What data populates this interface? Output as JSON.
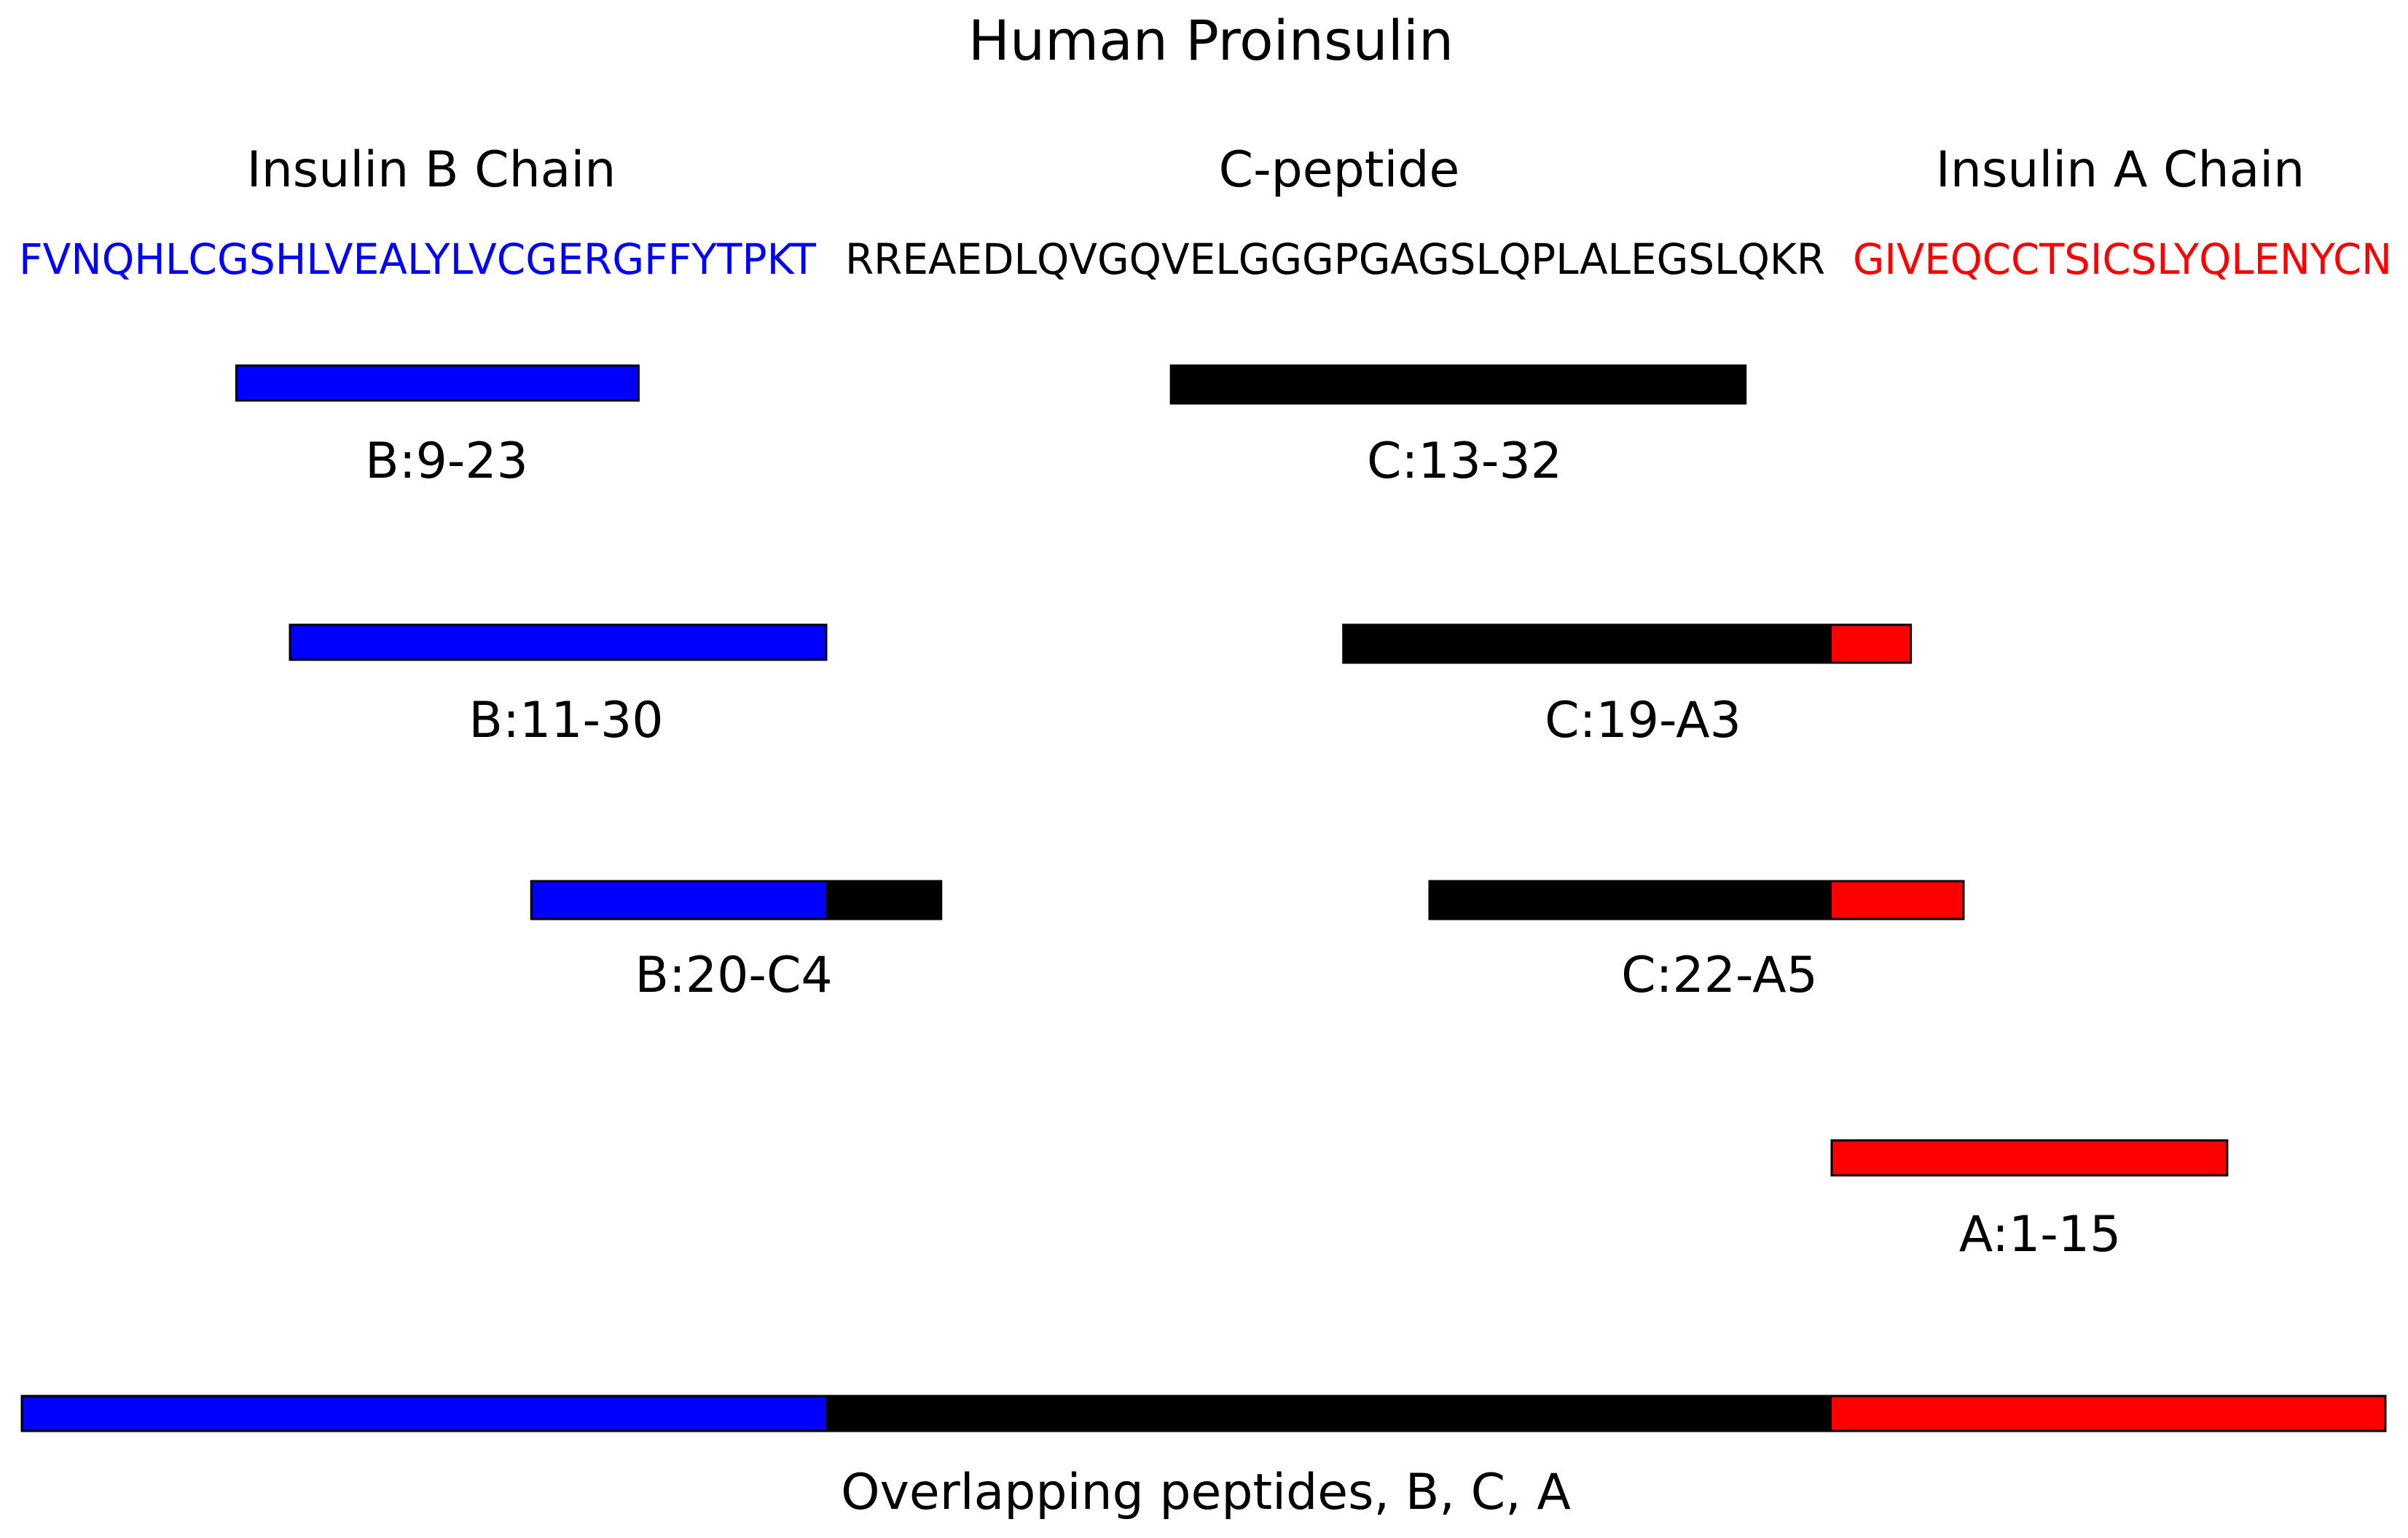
{
  "title": "Human Proinsulin",
  "colors": {
    "B": "#0000ff",
    "C": "#000000",
    "A": "#ff0000",
    "outline": "#000000"
  },
  "chains": [
    {
      "id": "B",
      "label": "Insulin B Chain",
      "sequence": "FVNQHLCGSHLVEALYLVCGERGFFYTPKT"
    },
    {
      "id": "C",
      "label": "C-peptide",
      "sequence": "RREAEDLQVGQVELGGGPGAGSLQPLALEGSLQKR"
    },
    {
      "id": "A",
      "label": "Insulin A Chain",
      "sequence": "GIVEQCCTSICSLYQLENYCN"
    }
  ],
  "peptides": [
    {
      "label": "B:9-23",
      "segments": [
        {
          "chain": "B",
          "start": 9,
          "end": 23
        }
      ]
    },
    {
      "label": "C:13-32",
      "segments": [
        {
          "chain": "C",
          "start": 13,
          "end": 32
        }
      ]
    },
    {
      "label": "B:11-30",
      "segments": [
        {
          "chain": "B",
          "start": 11,
          "end": 30
        }
      ]
    },
    {
      "label": "C:19-A3",
      "segments": [
        {
          "chain": "C",
          "start": 19,
          "end": 35
        },
        {
          "chain": "A",
          "start": 1,
          "end": 3
        }
      ]
    },
    {
      "label": "B:20-C4",
      "segments": [
        {
          "chain": "B",
          "start": 20,
          "end": 30
        },
        {
          "chain": "C",
          "start": 1,
          "end": 4
        }
      ]
    },
    {
      "label": "C:22-A5",
      "segments": [
        {
          "chain": "C",
          "start": 22,
          "end": 35
        },
        {
          "chain": "A",
          "start": 1,
          "end": 5
        }
      ]
    },
    {
      "label": "A:1-15",
      "segments": [
        {
          "chain": "A",
          "start": 1,
          "end": 15
        }
      ]
    }
  ],
  "overview": {
    "label": "Overlapping peptides, B, C, A",
    "segments": [
      {
        "chain": "B",
        "start": 1,
        "end": 30
      },
      {
        "chain": "C",
        "start": 1,
        "end": 35
      },
      {
        "chain": "A",
        "start": 1,
        "end": 21
      }
    ]
  }
}
